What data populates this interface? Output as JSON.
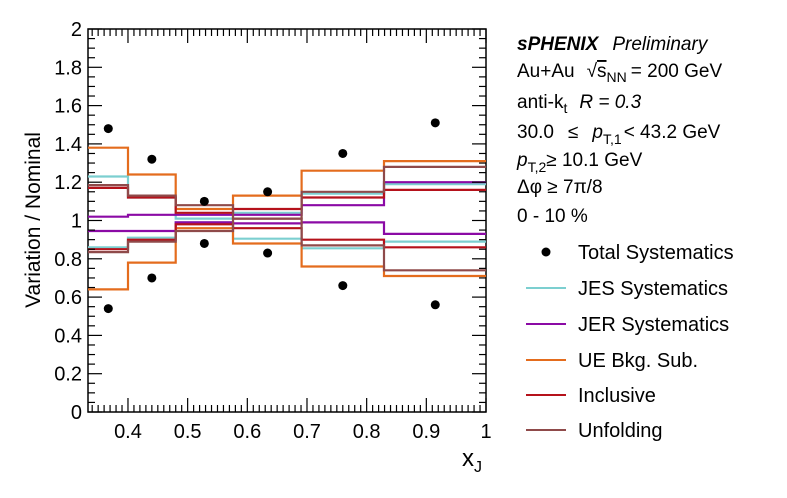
{
  "chart_data": {
    "type": "line",
    "style": "step-histogram-with-points",
    "xlabel": "x",
    "xlabel_sub": "J",
    "ylabel": "Variation / Nominal",
    "xlim": [
      0.333,
      1.0
    ],
    "ylim": [
      0,
      2
    ],
    "x_ticks": [
      0.4,
      0.5,
      0.6,
      0.7,
      0.8,
      0.9,
      1
    ],
    "x_tick_labels": [
      "0.4",
      "0.5",
      "0.6",
      "0.7",
      "0.8",
      "0.9",
      "1"
    ],
    "y_ticks": [
      0,
      0.2,
      0.4,
      0.6,
      0.8,
      1,
      1.2,
      1.4,
      1.6,
      1.8,
      2
    ],
    "y_tick_labels": [
      "0",
      "0.2",
      "0.4",
      "0.6",
      "0.8",
      "1",
      "1.2",
      "1.4",
      "1.6",
      "1.8",
      "2"
    ],
    "grid": false,
    "bin_edges": [
      0.333,
      0.4,
      0.48,
      0.576,
      0.691,
      0.829,
      1.0
    ],
    "points": {
      "name": "Total Systematics",
      "color": "#000000",
      "x": [
        0.367,
        0.44,
        0.528,
        0.634,
        0.76,
        0.915
      ],
      "upper": [
        1.48,
        1.32,
        1.1,
        1.15,
        1.35,
        1.51
      ],
      "lower": [
        0.54,
        0.7,
        0.88,
        0.83,
        0.66,
        0.56
      ]
    },
    "series": [
      {
        "name": "JES Systematics",
        "color": "#7ccfd0",
        "upper": [
          1.23,
          1.12,
          1.01,
          1.04,
          1.14,
          1.19
        ],
        "lower": [
          0.86,
          0.91,
          0.99,
          0.905,
          0.855,
          0.89
        ]
      },
      {
        "name": "JER Systematics",
        "color": "#8b0aa5",
        "upper": [
          1.02,
          1.03,
          1.03,
          1.03,
          1.08,
          1.2
        ],
        "lower": [
          0.945,
          0.945,
          0.99,
          0.985,
          0.99,
          0.93
        ]
      },
      {
        "name": "UE Bkg. Sub.",
        "color": "#e46c1d",
        "upper": [
          1.38,
          1.24,
          1.06,
          1.13,
          1.26,
          1.31
        ],
        "lower": [
          0.64,
          0.78,
          0.96,
          0.88,
          0.76,
          0.71
        ]
      },
      {
        "name": "Inclusive",
        "color": "#b5121b",
        "upper": [
          1.17,
          1.12,
          1.04,
          1.06,
          1.12,
          1.16
        ],
        "lower": [
          0.85,
          0.9,
          0.98,
          0.96,
          0.9,
          0.86
        ]
      },
      {
        "name": "Unfolding",
        "color": "#8f4a4a",
        "upper": [
          1.185,
          1.13,
          1.08,
          1.01,
          1.15,
          1.28
        ],
        "lower": [
          0.835,
          0.89,
          0.945,
          1.01,
          0.87,
          0.74
        ]
      }
    ],
    "legend": {
      "placement": "right",
      "entries": [
        "Total Systematics",
        "JES Systematics",
        "JER Systematics",
        "UE Bkg. Sub.",
        "Inclusive",
        "Unfolding"
      ]
    },
    "annotations": {
      "experiment": "sPHENIX",
      "status": "Preliminary",
      "system": "Au+Au",
      "energy_label": "s",
      "energy_sub": "NN",
      "energy_value": "= 200 GeV",
      "algo": "anti-k",
      "algo_sub": "t",
      "radius": "R = 0.3",
      "pt1_low": "30.0",
      "pt1_leq": "≤",
      "pt1_sym": "p",
      "pt1_sub": "T,1",
      "pt1_high": "< 43.2 GeV",
      "pt2_sym": "p",
      "pt2_sub": "T,2",
      "pt2_cut": "≥ 10.1 GeV",
      "dphi": "Δφ ≥ 7π/8",
      "centrality": "0 - 10 %"
    }
  }
}
